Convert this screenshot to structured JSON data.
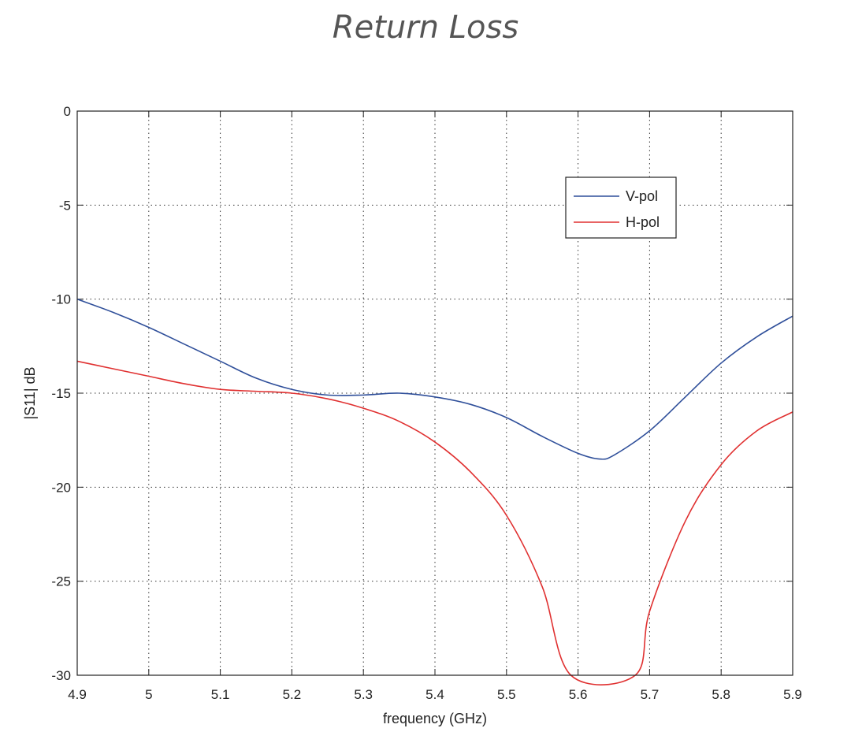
{
  "chart_data": {
    "type": "line",
    "title": "Return Loss",
    "xlabel": "frequency (GHz)",
    "ylabel": "|S11| dB",
    "xlim": [
      4.9,
      5.9
    ],
    "ylim": [
      -30,
      0
    ],
    "xticks": [
      "4.9",
      "5",
      "5.1",
      "5.2",
      "5.3",
      "5.4",
      "5.5",
      "5.6",
      "5.7",
      "5.8",
      "5.9"
    ],
    "yticks": [
      "0",
      "-5",
      "-10",
      "-15",
      "-20",
      "-25",
      "-30"
    ],
    "grid": true,
    "legend_position": "top-right",
    "series": [
      {
        "name": "V-pol",
        "color": "#2f4f9a",
        "x": [
          4.9,
          4.95,
          5.0,
          5.05,
          5.1,
          5.15,
          5.2,
          5.25,
          5.3,
          5.35,
          5.4,
          5.45,
          5.5,
          5.55,
          5.6,
          5.63,
          5.65,
          5.7,
          5.75,
          5.8,
          5.85,
          5.9
        ],
        "y": [
          -10.0,
          -10.7,
          -11.5,
          -12.4,
          -13.3,
          -14.2,
          -14.8,
          -15.1,
          -15.1,
          -15.0,
          -15.2,
          -15.6,
          -16.3,
          -17.3,
          -18.2,
          -18.5,
          -18.3,
          -17.0,
          -15.2,
          -13.4,
          -12.0,
          -10.9
        ]
      },
      {
        "name": "H-pol",
        "color": "#e03030",
        "x": [
          4.9,
          4.95,
          5.0,
          5.05,
          5.1,
          5.15,
          5.2,
          5.25,
          5.3,
          5.35,
          5.4,
          5.45,
          5.5,
          5.55,
          5.59,
          5.68,
          5.7,
          5.75,
          5.8,
          5.85,
          5.9
        ],
        "y": [
          -13.3,
          -13.7,
          -14.1,
          -14.5,
          -14.8,
          -14.9,
          -15.0,
          -15.3,
          -15.8,
          -16.5,
          -17.6,
          -19.2,
          -21.5,
          -25.3,
          -30.0,
          -30.0,
          -26.6,
          -21.8,
          -18.8,
          -17.0,
          -16.0
        ]
      }
    ]
  }
}
